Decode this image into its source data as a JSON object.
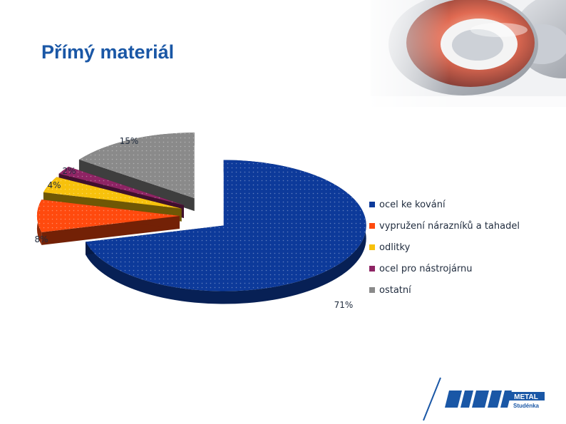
{
  "slide": {
    "title": "Přímý materiál"
  },
  "chart_data": {
    "type": "pie",
    "style": "3d exploded",
    "title": "",
    "legend_position": "right",
    "slices": [
      {
        "label": "ocel ke kování",
        "value": 71,
        "display": "71%",
        "color": "#0d3a9a"
      },
      {
        "label": "vypružení nárazníků a tahadel",
        "value": 8,
        "display": "8%",
        "color": "#ff4a0e"
      },
      {
        "label": "odlitky",
        "value": 4,
        "display": "4%",
        "color": "#f7c10c"
      },
      {
        "label": "ocel pro nástrojárnu",
        "value": 2,
        "display": "2%",
        "color": "#8e2464"
      },
      {
        "label": "ostatní",
        "value": 15,
        "display": "15%",
        "color": "#8a8a8a"
      }
    ]
  },
  "logo": {
    "brand": "METAL",
    "location": "Studénka"
  }
}
